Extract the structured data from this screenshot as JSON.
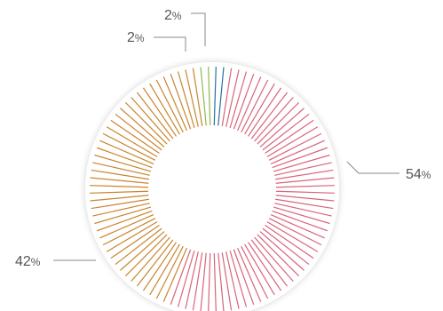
{
  "chart_data": {
    "type": "pie",
    "style": "radial-line donut",
    "title": "",
    "series": [
      {
        "value": 2,
        "label": "2",
        "unit": "%",
        "color": "#2b6fa6"
      },
      {
        "value": 54,
        "label": "54",
        "unit": "%",
        "color": "#d9647c"
      },
      {
        "value": 42,
        "label": "42",
        "unit": "%",
        "color": "#c9852e"
      },
      {
        "value": 2,
        "label": "2",
        "unit": "%",
        "color": "#8fb84c"
      }
    ]
  }
}
